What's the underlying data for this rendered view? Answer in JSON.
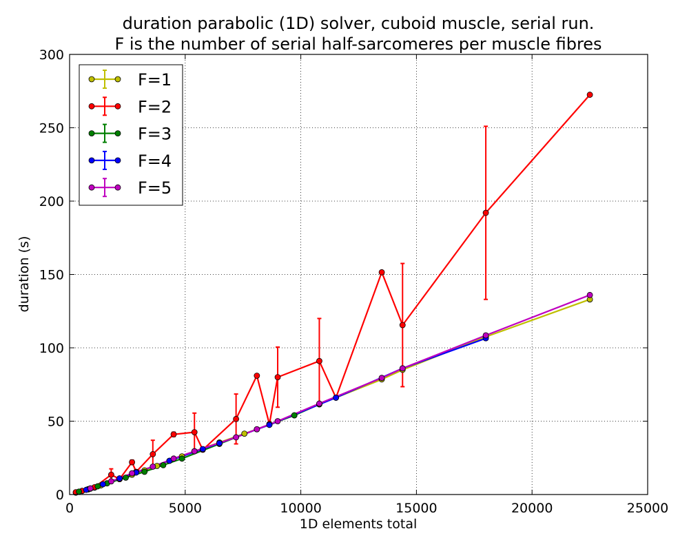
{
  "chart_data": {
    "type": "line",
    "title_line1": "duration parabolic (1D) solver, cuboid muscle, serial run.",
    "title_line2": "F is the number of serial half-sarcomeres per muscle fibres",
    "xlabel": "1D elements total",
    "ylabel": "duration (s)",
    "xlim": [
      0,
      25000
    ],
    "ylim": [
      0,
      300
    ],
    "xticks": [
      0,
      5000,
      10000,
      15000,
      20000,
      25000
    ],
    "yticks": [
      0,
      50,
      100,
      150,
      200,
      250,
      300
    ],
    "grid": true,
    "legend_position": "top-left",
    "series": [
      {
        "name": "F=1",
        "color": "#bfbf00",
        "x": [
          270,
          540,
          810,
          1080,
          1350,
          1620,
          2160,
          2700,
          3240,
          3780,
          4320,
          4860,
          5400,
          6480,
          7560,
          8640,
          9720,
          10800,
          13500,
          14400,
          18000,
          22500
        ],
        "y": [
          1.3,
          2.4,
          3.5,
          4.7,
          6.2,
          7.7,
          10.5,
          13.5,
          16.5,
          19.5,
          23.0,
          26.0,
          29.5,
          35.5,
          41.5,
          47.5,
          54.0,
          61.5,
          78.5,
          85.0,
          107.5,
          133.0
        ]
      },
      {
        "name": "F=2",
        "color": "#ff0000",
        "x": [
          270,
          540,
          900,
          1080,
          1800,
          2160,
          2700,
          2880,
          3600,
          4500,
          5400,
          5760,
          7200,
          8100,
          8640,
          9000,
          10800,
          11520,
          13500,
          14400,
          18000,
          22500
        ],
        "y": [
          1.6,
          2.5,
          4.0,
          5.0,
          13.5,
          10.5,
          22.0,
          15.5,
          27.5,
          41.0,
          42.5,
          30.5,
          51.5,
          81.0,
          48.0,
          80.0,
          91.0,
          66.0,
          151.5,
          115.5,
          192.0,
          272.5
        ],
        "err": [
          0,
          0,
          0,
          0,
          4.0,
          0,
          1.5,
          0,
          9.5,
          1.5,
          13.0,
          0,
          17.0,
          0,
          0,
          20.5,
          29.0,
          0,
          0,
          42.0,
          59.0,
          0
        ]
      },
      {
        "name": "F=3",
        "color": "#007f00",
        "x": [
          405,
          810,
          1215,
          1620,
          2430,
          3240,
          4050,
          4860,
          6480,
          8100,
          9720,
          10800
        ],
        "y": [
          2.0,
          3.7,
          5.6,
          7.6,
          11.5,
          15.5,
          20.0,
          24.5,
          34.5,
          44.5,
          54.0,
          61.5
        ]
      },
      {
        "name": "F=4",
        "color": "#0000ff",
        "x": [
          720,
          1440,
          2160,
          2880,
          4320,
          5760,
          6480,
          8640,
          11520,
          14400,
          18000
        ],
        "y": [
          3.2,
          7.0,
          11.0,
          15.0,
          23.0,
          31.0,
          35.0,
          47.5,
          66.0,
          86.0,
          106.5
        ]
      },
      {
        "name": "F=5",
        "color": "#bf00bf",
        "x": [
          900,
          1800,
          2700,
          3600,
          4500,
          5400,
          7200,
          8100,
          9000,
          10800,
          13500,
          14400,
          18000,
          22500
        ],
        "y": [
          4.2,
          9.0,
          14.5,
          19.0,
          24.5,
          29.5,
          39.0,
          44.5,
          50.0,
          62.0,
          79.5,
          86.0,
          108.5,
          136.0
        ]
      }
    ]
  }
}
